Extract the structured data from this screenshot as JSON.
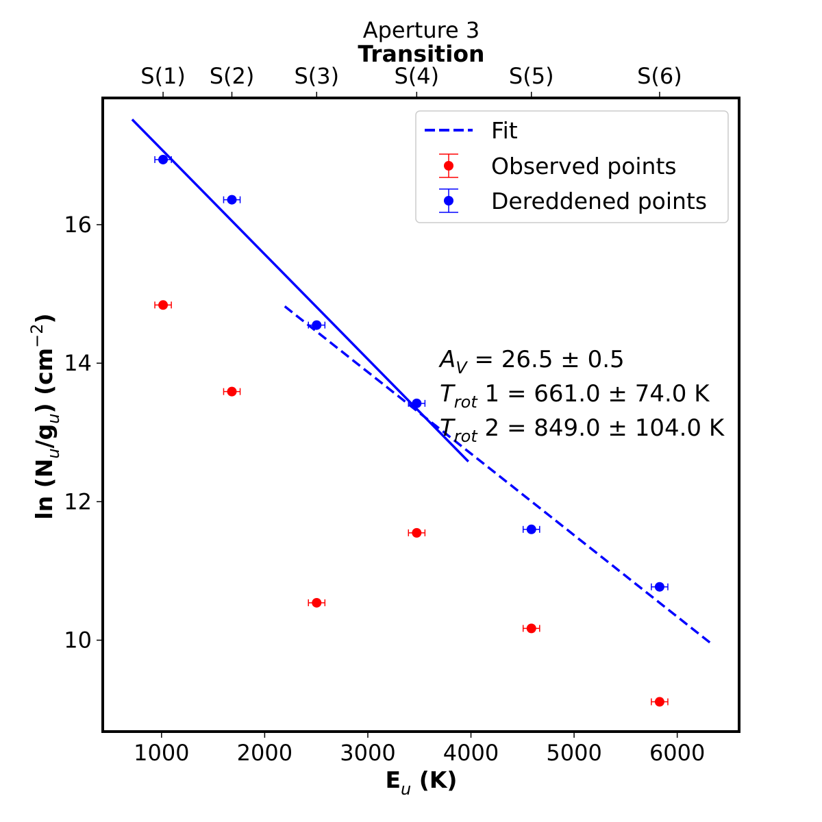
{
  "chart_data": {
    "type": "scatter",
    "title": "Aperture 3",
    "top_axis_label": "Transition",
    "xlabel_main": "E",
    "xlabel_sub": "u",
    "xlabel_units": " (K)",
    "ylabel_main": "ln (N",
    "ylabel_sub1": "u",
    "ylabel_mid": "/g",
    "ylabel_sub2": "u",
    "ylabel_units": ") (cm",
    "ylabel_sup": "−2",
    "ylabel_end": ")",
    "xlim": [
      430,
      6600
    ],
    "ylim": [
      8.68,
      17.83
    ],
    "x_ticks": [
      1000,
      2000,
      3000,
      4000,
      5000,
      6000
    ],
    "y_ticks": [
      10,
      12,
      14,
      16
    ],
    "top_ticks": [
      {
        "label": "S(1)",
        "x": 1015
      },
      {
        "label": "S(2)",
        "x": 1682
      },
      {
        "label": "S(3)",
        "x": 2504
      },
      {
        "label": "S(4)",
        "x": 3474
      },
      {
        "label": "S(5)",
        "x": 4586
      },
      {
        "label": "S(6)",
        "x": 5829
      }
    ],
    "series": [
      {
        "name": "Observed points",
        "color": "#ff0000",
        "points": [
          {
            "x": 1015,
            "y": 14.84
          },
          {
            "x": 1682,
            "y": 13.59
          },
          {
            "x": 2504,
            "y": 10.54
          },
          {
            "x": 3474,
            "y": 11.55
          },
          {
            "x": 4586,
            "y": 10.17
          },
          {
            "x": 5829,
            "y": 9.11
          }
        ],
        "xerr": 80,
        "yerr": 0.05
      },
      {
        "name": "Dereddened points",
        "color": "#0000ff",
        "points": [
          {
            "x": 1015,
            "y": 16.94
          },
          {
            "x": 1682,
            "y": 16.36
          },
          {
            "x": 2504,
            "y": 14.55
          },
          {
            "x": 3474,
            "y": 13.42
          },
          {
            "x": 4586,
            "y": 11.6
          },
          {
            "x": 5829,
            "y": 10.77
          }
        ],
        "xerr": 80,
        "yerr": 0.06
      }
    ],
    "fits": [
      {
        "name": "Fit",
        "style": "solid",
        "color": "#0000ff",
        "x": [
          715,
          3975
        ],
        "y": [
          17.52,
          12.58
        ]
      },
      {
        "name": "Fit",
        "style": "dashed",
        "color": "#0000ff",
        "x": [
          2195,
          6330
        ],
        "y": [
          14.82,
          9.95
        ]
      }
    ],
    "legend": {
      "position": "top-right",
      "entries": [
        "Fit",
        "Observed points",
        "Dereddened points"
      ]
    },
    "annotations": {
      "av": {
        "symbol": "A",
        "sub": "V",
        "text": " = 26.5 ± 0.5"
      },
      "trot1": {
        "symbol": "T",
        "sub": "rot",
        "text": " 1 = 661.0 ± 74.0 K"
      },
      "trot2": {
        "symbol": "T",
        "sub": "rot",
        "text": " 2 = 849.0 ± 104.0 K"
      }
    }
  }
}
